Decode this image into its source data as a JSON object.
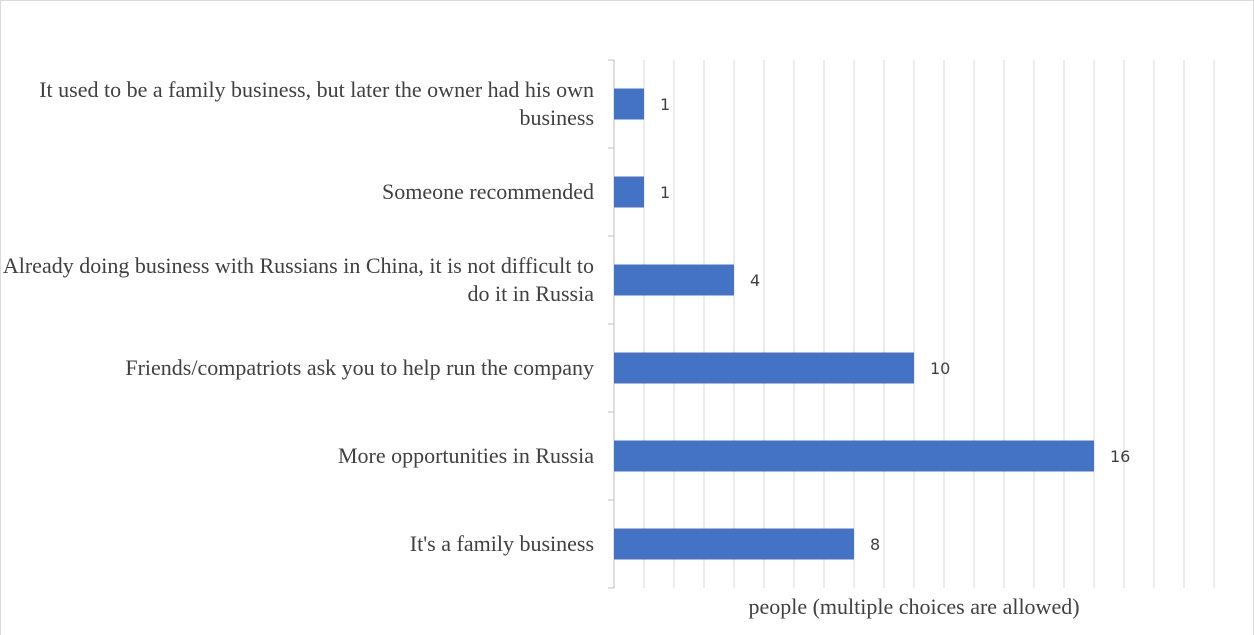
{
  "chart_data": {
    "type": "bar",
    "orientation": "horizontal",
    "categories": [
      "It used to be a family business, but later the owner had his own business",
      "Someone recommended",
      "Already doing business with Russians in China, it is not difficult to do it in Russia",
      "Friends/compatriots ask you to help run the company",
      "More opportunities in Russia",
      "It's a family business"
    ],
    "values": [
      1,
      1,
      4,
      10,
      16,
      8
    ],
    "xlabel": "people (multiple choices are allowed)",
    "ylabel": "",
    "xlim": [
      0,
      20
    ],
    "grid": true,
    "bar_color": "#4472c4",
    "data_labels": [
      "1",
      "1",
      "4",
      "10",
      "16",
      "8"
    ]
  }
}
